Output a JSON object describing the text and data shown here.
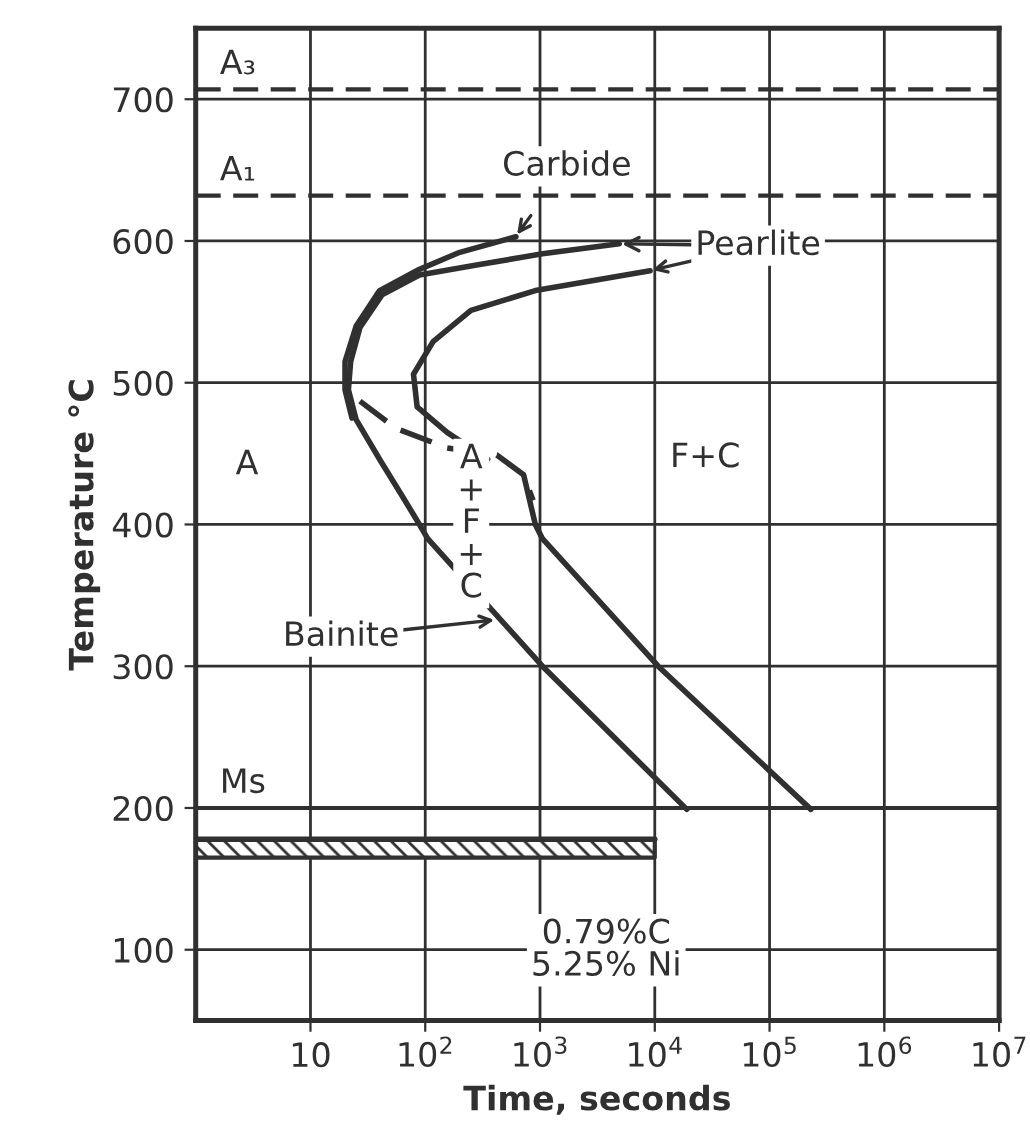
{
  "chart_data": {
    "type": "line",
    "xlabel": "Time, seconds",
    "ylabel": "Temperature °C",
    "log": "x",
    "xlim": [
      1,
      10000000
    ],
    "ylim": [
      50,
      750
    ],
    "xticks": [
      10,
      {
        "value": 100,
        "label": "10$^{2}$"
      },
      {
        "value": 1000,
        "label": "10$^{3}$"
      },
      {
        "value": 10000,
        "label": "10$^{4}$"
      },
      {
        "value": 100000,
        "label": "10$^{5}$"
      },
      {
        "value": 1000000,
        "label": "10$^{6}$"
      },
      {
        "value": 10000000,
        "label": "10$^{7}$"
      }
    ],
    "yticks": [
      100,
      200,
      300,
      400,
      500,
      600,
      700
    ],
    "grid": true,
    "legend": false,
    "marker": "none",
    "series": [
      {
        "color": "#303030",
        "x": [
          617,
          200,
          89,
          40,
          25,
          20,
          20,
          23
        ],
        "values": [
          603,
          592,
          580,
          565,
          540,
          515,
          495,
          475
        ]
      },
      {
        "color": "#303030",
        "x": [
          4900,
          1050,
          280,
          89,
          42,
          27,
          22.4,
          21.4,
          25,
          40,
          62,
          89,
          105,
          1050,
          19000
        ],
        "values": [
          598,
          591,
          583,
          576,
          562,
          539,
          515,
          495,
          474,
          446,
          421,
          400,
          390,
          300,
          199
        ]
      },
      {
        "color": "#303030",
        "x": [
          9100,
          910,
          250,
          117,
          79,
          85,
          155,
          350
        ],
        "values": [
          579,
          565,
          551,
          529,
          506,
          483,
          465,
          446
        ]
      },
      {
        "color": "#303030",
        "line_style": "dashed",
        "x": [
          27,
          55,
          155,
          420,
          720,
          870
        ],
        "values": [
          487,
          468,
          454,
          449,
          435,
          417
        ]
      },
      {
        "color": "#303030",
        "x": [
          720,
          910,
          1050,
          10700,
          229000
        ],
        "values": [
          435,
          400,
          390,
          300,
          199
        ]
      },
      {
        "color": "#303030",
        "x": [
          1,
          10000
        ],
        "values": [
          178,
          178
        ],
        "lower": [
          165,
          165
        ],
        "upper": [
          178,
          178
        ]
      }
    ],
    "ref_lines": [
      {
        "axis": "y",
        "value": 707,
        "label": "A₃",
        "line_style": "dashed",
        "color": "#303030"
      },
      {
        "axis": "y",
        "value": 632,
        "label": "A₁",
        "line_style": "dashed",
        "color": "#303030"
      },
      {
        "axis": "y",
        "value": 200,
        "label": "Ms",
        "line_style": "solid",
        "color": "#303030"
      }
    ],
    "annotations": [
      {
        "text": "A",
        "x": 2.8,
        "y": 442
      },
      {
        "text": "F+C",
        "x": 27500,
        "y": 447
      },
      "A\n+\nF\n+\nC",
      "Carbide",
      {
        "text": "Pearlite",
        "x": 4900,
        "y": 598
      },
      "Bainite",
      "0.79%C\n5.25% Ni"
    ]
  }
}
